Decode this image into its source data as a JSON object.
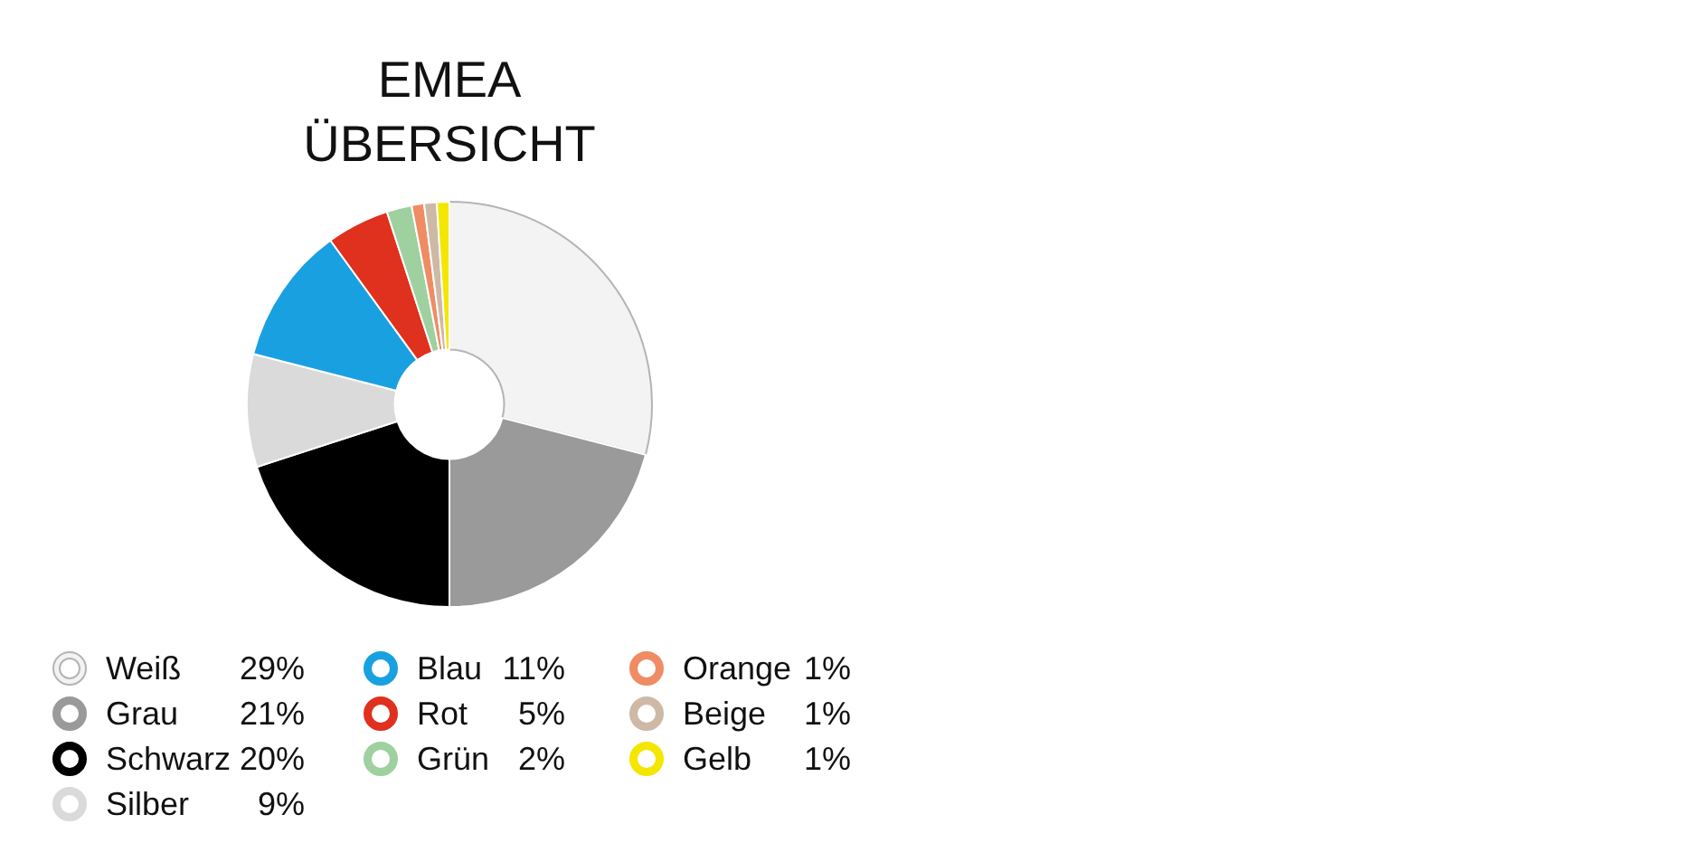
{
  "chart_data": {
    "type": "donut",
    "title": "EMEA ÜBERSICHT",
    "categories": [
      "Weiß",
      "Grau",
      "Schwarz",
      "Silber",
      "Blau",
      "Rot",
      "Grün",
      "Orange",
      "Beige",
      "Gelb"
    ],
    "values": [
      29,
      21,
      20,
      9,
      11,
      5,
      2,
      1,
      1,
      1
    ],
    "value_labels": [
      "29%",
      "21%",
      "20%",
      "9%",
      "11%",
      "5%",
      "2%",
      "1%",
      "1%",
      "1%"
    ],
    "colors": [
      "#f3f3f3",
      "#9a9a9a",
      "#000000",
      "#dadada",
      "#19a0e0",
      "#e0301e",
      "#9fd09f",
      "#f08c64",
      "#cdb9a5",
      "#f5e600"
    ],
    "legend": "bottom left"
  }
}
